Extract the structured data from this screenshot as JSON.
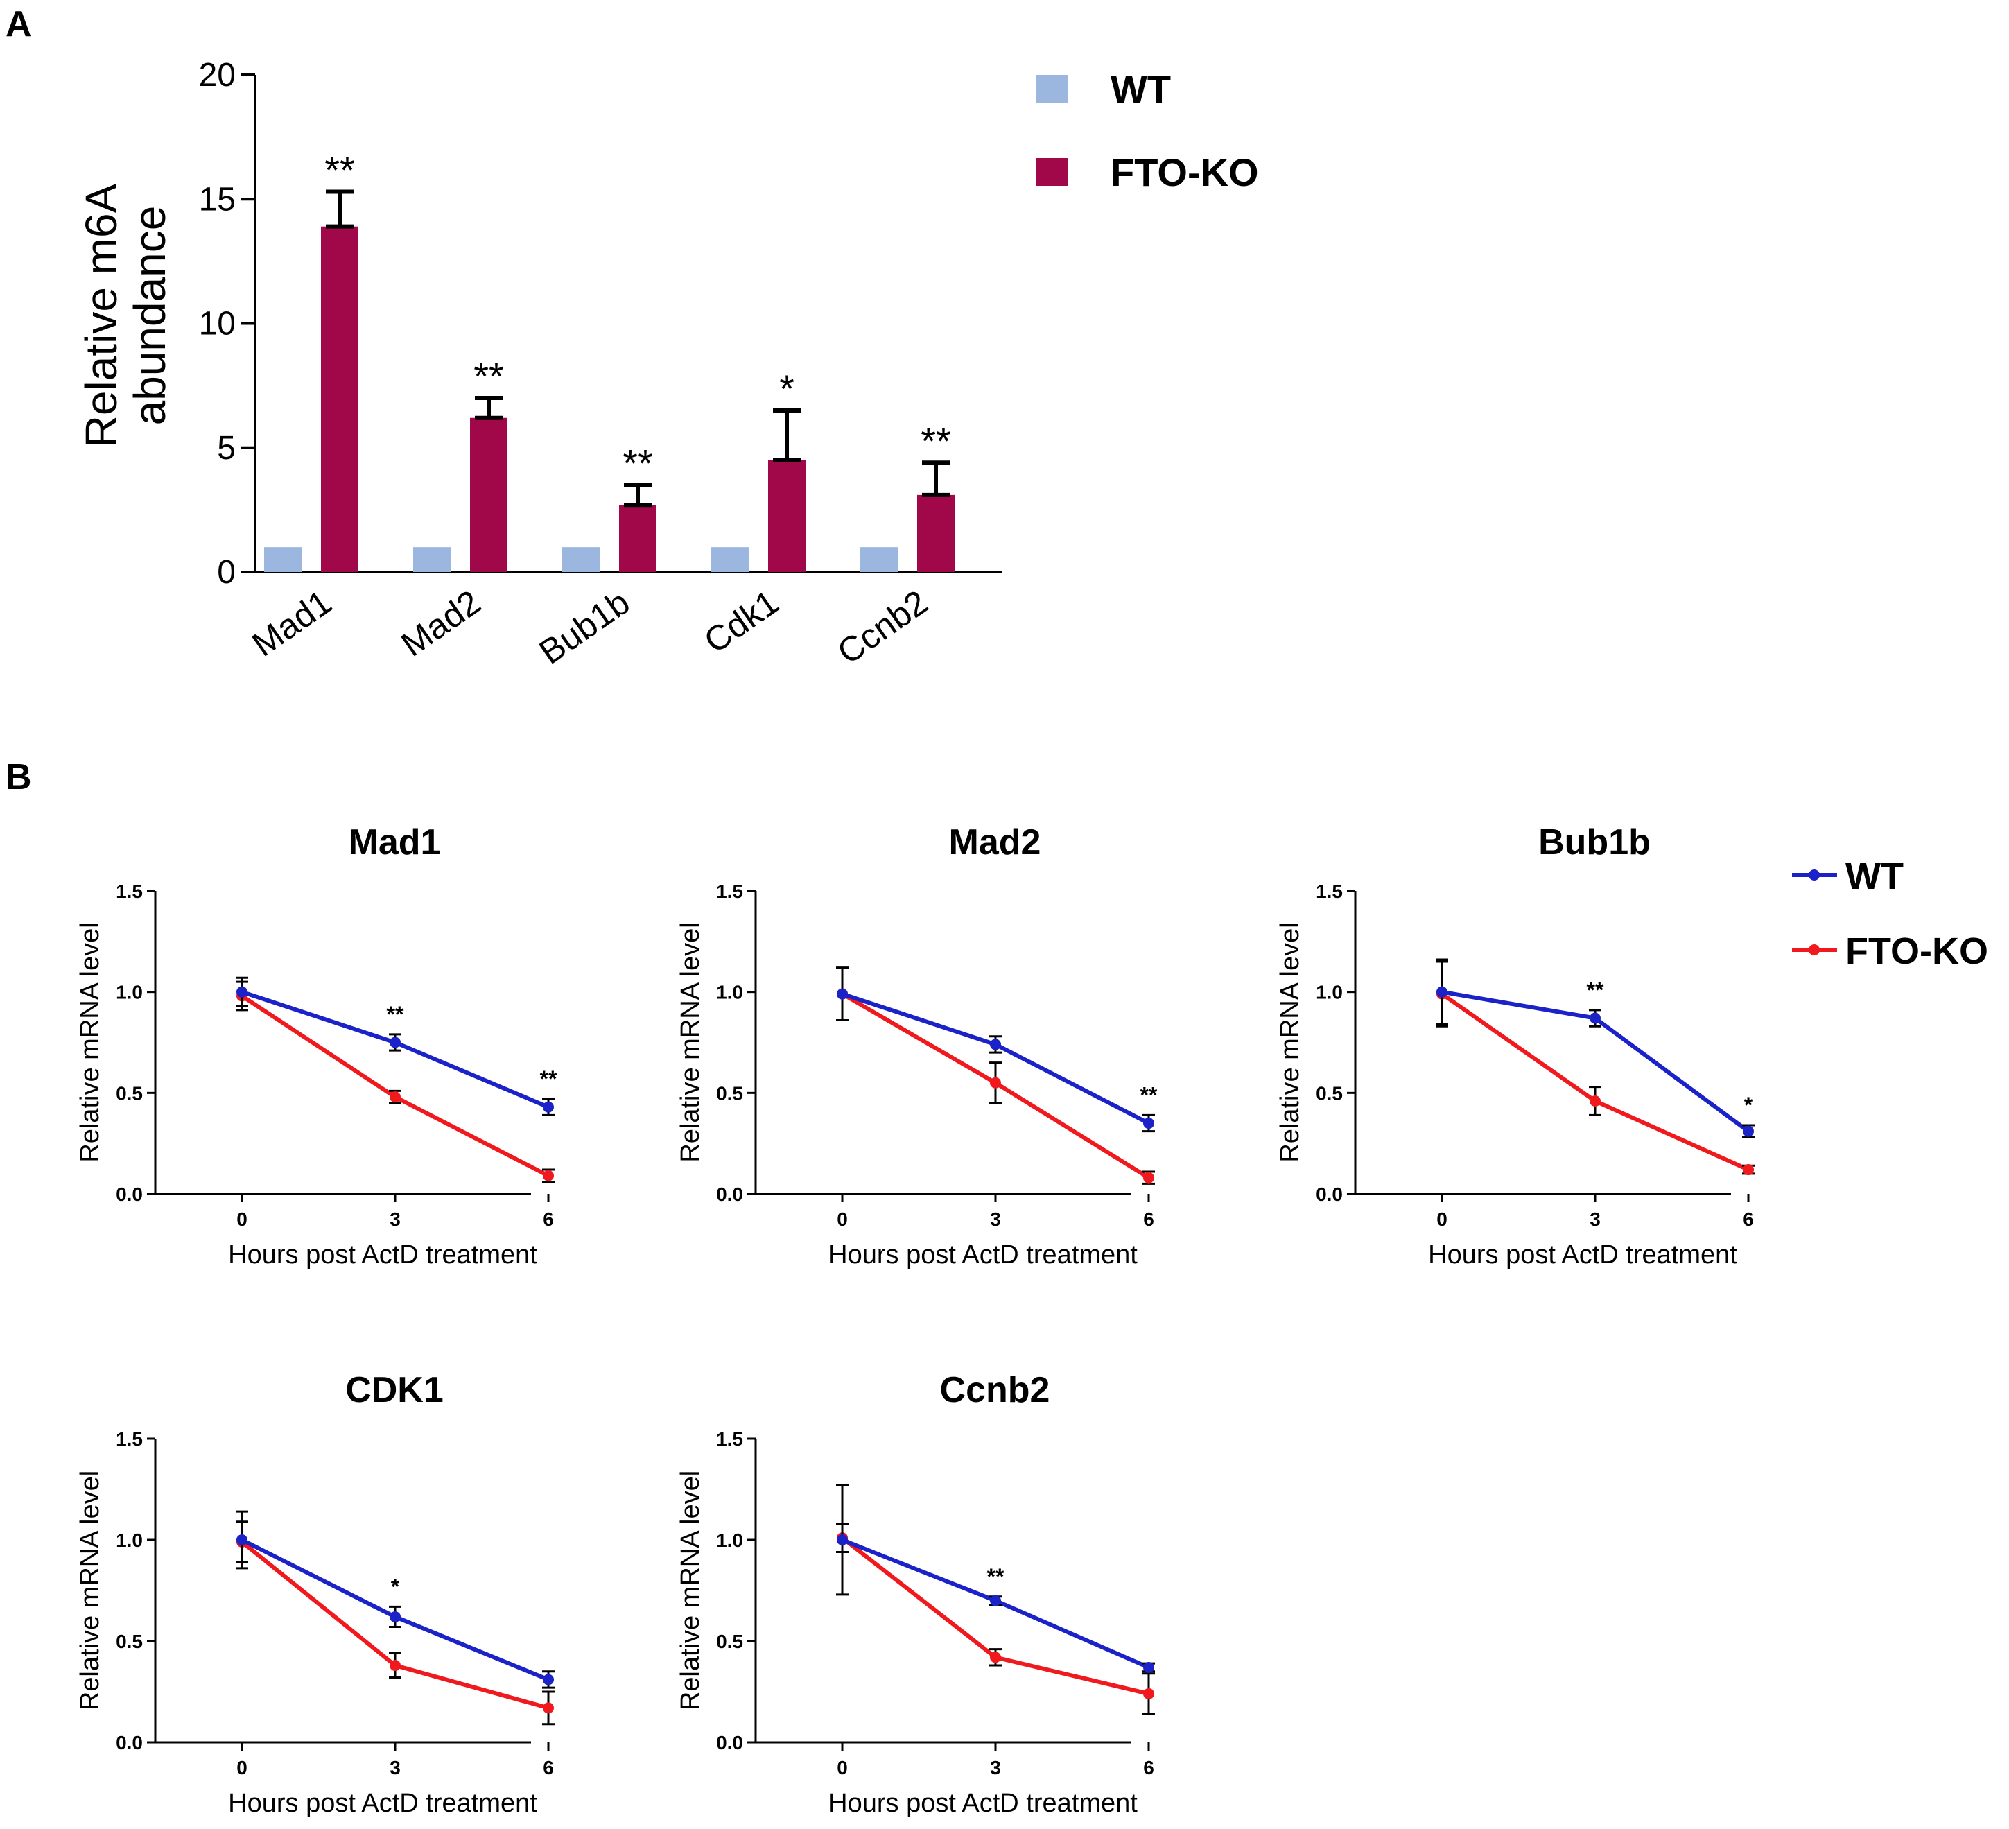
{
  "panels": {
    "a": "A",
    "b": "B"
  },
  "colors": {
    "wt_bar": "#9bb7e0",
    "ko_bar": "#a0084a",
    "wt_line": "#1a22c8",
    "ko_line": "#f0191e",
    "axis": "#000000"
  },
  "chart_data": [
    {
      "type": "bar",
      "panel": "A",
      "title": "",
      "ylabel_lines": [
        "Relative m6A",
        "abundance"
      ],
      "xlabel": "",
      "ylim": [
        0,
        20
      ],
      "yticks": [
        "0",
        "5",
        "10",
        "15",
        "20"
      ],
      "categories": [
        "Mad1",
        "Mad2",
        "Bub1b",
        "Cdk1",
        "Ccnb2"
      ],
      "series": [
        {
          "name": "WT",
          "values": [
            1,
            1,
            1,
            1,
            1
          ],
          "errors": [
            0,
            0,
            0,
            0,
            0
          ],
          "significance": [
            "",
            "",
            "",
            "",
            ""
          ]
        },
        {
          "name": "FTO-KO",
          "values": [
            13.9,
            6.2,
            2.7,
            4.5,
            3.1
          ],
          "errors": [
            1.4,
            0.8,
            0.8,
            2.0,
            1.3
          ],
          "significance": [
            "**",
            "**",
            "**",
            "*",
            "**"
          ]
        }
      ],
      "legend": [
        "WT",
        "FTO-KO"
      ],
      "legend_position": "top-right"
    },
    {
      "type": "line",
      "panel": "B",
      "title": "Mad1",
      "xlabel": "Hours post ActD treatment",
      "ylabel": "Relative mRNA level",
      "x": [
        0,
        3,
        6
      ],
      "xticks": [
        "0",
        "3",
        "6"
      ],
      "ylim": [
        0,
        1.5
      ],
      "yticks": [
        "0.0",
        "0.5",
        "1.0",
        "1.5"
      ],
      "series": [
        {
          "name": "WT",
          "values": [
            1.0,
            0.75,
            0.43
          ],
          "errors": [
            0.07,
            0.04,
            0.04
          ]
        },
        {
          "name": "FTO-KO",
          "values": [
            0.98,
            0.48,
            0.09
          ],
          "errors": [
            0.07,
            0.03,
            0.03
          ]
        }
      ],
      "significance": [
        "",
        "**",
        "**"
      ]
    },
    {
      "type": "line",
      "panel": "B",
      "title": "Mad2",
      "xlabel": "Hours post ActD treatment",
      "ylabel": "Relative mRNA level",
      "x": [
        0,
        3,
        6
      ],
      "xticks": [
        "0",
        "3",
        "6"
      ],
      "ylim": [
        0,
        1.5
      ],
      "yticks": [
        "0.0",
        "0.5",
        "1.0",
        "1.5"
      ],
      "series": [
        {
          "name": "WT",
          "values": [
            0.99,
            0.74,
            0.35
          ],
          "errors": [
            0.13,
            0.04,
            0.04
          ]
        },
        {
          "name": "FTO-KO",
          "values": [
            0.99,
            0.55,
            0.08
          ],
          "errors": [
            0.13,
            0.1,
            0.03
          ]
        }
      ],
      "significance": [
        "",
        "",
        "**"
      ]
    },
    {
      "type": "line",
      "panel": "B",
      "title": "Bub1b",
      "xlabel": "Hours post ActD treatment",
      "ylabel": "Relative mRNA level",
      "x": [
        0,
        3,
        6
      ],
      "xticks": [
        "0",
        "3",
        "6"
      ],
      "ylim": [
        0,
        1.5
      ],
      "yticks": [
        "0.0",
        "0.5",
        "1.0",
        "1.5"
      ],
      "series": [
        {
          "name": "WT",
          "values": [
            1.0,
            0.87,
            0.31
          ],
          "errors": [
            0.16,
            0.04,
            0.03
          ]
        },
        {
          "name": "FTO-KO",
          "values": [
            0.99,
            0.46,
            0.12
          ],
          "errors": [
            0.16,
            0.07,
            0.02
          ]
        }
      ],
      "significance": [
        "",
        "**",
        "*"
      ]
    },
    {
      "type": "line",
      "panel": "B",
      "title": "CDK1",
      "xlabel": "Hours post ActD treatment",
      "ylabel": "Relative mRNA level",
      "x": [
        0,
        3,
        6
      ],
      "xticks": [
        "0",
        "3",
        "6"
      ],
      "ylim": [
        0,
        1.5
      ],
      "yticks": [
        "0.0",
        "0.5",
        "1.0",
        "1.5"
      ],
      "series": [
        {
          "name": "WT",
          "values": [
            1.0,
            0.62,
            0.31
          ],
          "errors": [
            0.14,
            0.05,
            0.04
          ]
        },
        {
          "name": "FTO-KO",
          "values": [
            0.99,
            0.38,
            0.17
          ],
          "errors": [
            0.1,
            0.06,
            0.08
          ]
        }
      ],
      "significance": [
        "",
        "*",
        ""
      ]
    },
    {
      "type": "line",
      "panel": "B",
      "title": "Ccnb2",
      "xlabel": "Hours post ActD treatment",
      "ylabel": "Relative mRNA level",
      "x": [
        0,
        3,
        6
      ],
      "xticks": [
        "0",
        "3",
        "6"
      ],
      "ylim": [
        0,
        1.5
      ],
      "yticks": [
        "0.0",
        "0.5",
        "1.0",
        "1.5"
      ],
      "series": [
        {
          "name": "WT",
          "values": [
            1.0,
            0.7,
            0.37
          ],
          "errors": [
            0.27,
            0.02,
            0.02
          ]
        },
        {
          "name": "FTO-KO",
          "values": [
            1.01,
            0.42,
            0.24
          ],
          "errors": [
            0.07,
            0.04,
            0.1
          ]
        }
      ],
      "significance": [
        "",
        "**",
        ""
      ]
    }
  ],
  "line_legend": [
    "WT",
    "FTO-KO"
  ]
}
